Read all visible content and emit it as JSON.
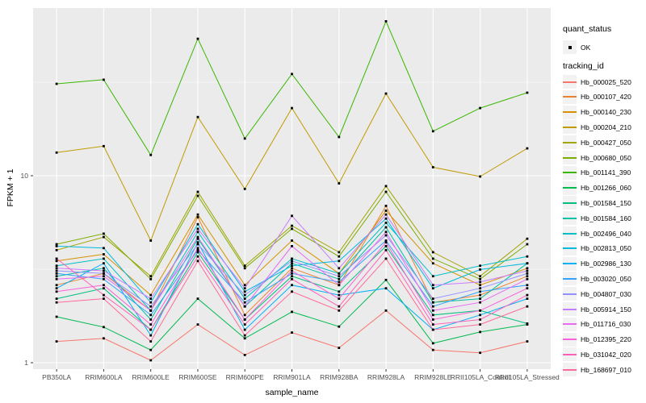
{
  "figure": {
    "background": "#FFFFFF",
    "panel_background": "#EBEBEB",
    "gridline_color": "#FFFFFF",
    "tick_label_color": "#4D4D4D",
    "tick_mark_color": "#333333",
    "point_color": "#000000"
  },
  "legend": {
    "quant_status_title": "quant_status",
    "quant_status_items": [
      {
        "label": "OK",
        "marker": "black-point"
      }
    ],
    "tracking_id_title": "tracking_id",
    "key_background": "#F2F2F2"
  },
  "chart_data": {
    "type": "line",
    "title": "",
    "xlabel": "sample_name",
    "ylabel": "FPKM + 1",
    "yscale": "log10",
    "yticks": [
      1,
      10
    ],
    "yminorticks": [
      3.162,
      31.62
    ],
    "ylim": [
      0.93,
      79
    ],
    "grid": true,
    "legend_position": "right",
    "point_shape": "small-black-square",
    "categories": [
      "PB350LA",
      "RRIM600LA",
      "RRIM600LE",
      "RRIM600SE",
      "RRIM600PE",
      "RRIM901LA",
      "RRIM928BA",
      "RRIM928LA",
      "RRIM928LE",
      "RRII105LA_Control",
      "RRII105LA_Stressed"
    ],
    "series": [
      {
        "name": "Hb_000025_520",
        "color": "#F8766D",
        "values": [
          1.3,
          1.35,
          1.03,
          1.6,
          1.1,
          1.45,
          1.2,
          1.9,
          1.17,
          1.13,
          1.3
        ]
      },
      {
        "name": "Hb_000107_420",
        "color": "#EA8331",
        "values": [
          2.6,
          3.0,
          1.9,
          6.0,
          1.8,
          3.2,
          2.6,
          6.9,
          2.1,
          2.3,
          2.9
        ]
      },
      {
        "name": "Hb_000140_230",
        "color": "#D89000",
        "values": [
          3.5,
          3.8,
          2.3,
          6.2,
          2.6,
          4.5,
          3.0,
          6.5,
          3.4,
          2.6,
          3.2
        ]
      },
      {
        "name": "Hb_000204_210",
        "color": "#C09B00",
        "values": [
          13.3,
          14.4,
          4.5,
          20.6,
          8.5,
          23.0,
          9.1,
          27.5,
          11.1,
          9.9,
          14.0
        ]
      },
      {
        "name": "Hb_000427_050",
        "color": "#A3A500",
        "values": [
          4.0,
          4.7,
          2.9,
          8.2,
          3.3,
          5.4,
          3.9,
          8.8,
          3.9,
          2.9,
          4.6
        ]
      },
      {
        "name": "Hb_000680_050",
        "color": "#7CAE00",
        "values": [
          4.3,
          4.9,
          2.8,
          7.8,
          3.2,
          5.2,
          3.7,
          8.2,
          3.6,
          2.8,
          4.3
        ]
      },
      {
        "name": "Hb_001141_390",
        "color": "#39B600",
        "values": [
          31.0,
          32.6,
          12.9,
          54.0,
          15.8,
          35.0,
          16.1,
          67.0,
          17.3,
          23.0,
          27.8
        ]
      },
      {
        "name": "Hb_001266_060",
        "color": "#00BB4E",
        "values": [
          1.76,
          1.55,
          1.17,
          2.2,
          1.35,
          1.87,
          1.56,
          2.77,
          1.27,
          1.46,
          1.6
        ]
      },
      {
        "name": "Hb_001584_150",
        "color": "#00BF7D",
        "values": [
          2.2,
          2.5,
          1.5,
          3.9,
          1.7,
          2.9,
          2.4,
          4.2,
          1.8,
          1.9,
          1.62
        ]
      },
      {
        "name": "Hb_001584_160",
        "color": "#00C1A3",
        "values": [
          2.9,
          3.2,
          1.7,
          4.6,
          2.0,
          3.4,
          2.8,
          5.3,
          2.1,
          2.2,
          3.4
        ]
      },
      {
        "name": "Hb_002496_040",
        "color": "#00BFC4",
        "values": [
          3.3,
          3.6,
          1.9,
          5.0,
          2.2,
          3.6,
          3.0,
          5.6,
          2.9,
          3.3,
          3.7
        ]
      },
      {
        "name": "Hb_002813_050",
        "color": "#00BAE0",
        "values": [
          4.2,
          4.1,
          2.1,
          5.5,
          2.4,
          3.3,
          3.5,
          5.9,
          2.5,
          3.15,
          3.4
        ]
      },
      {
        "name": "Hb_002986_130",
        "color": "#00B0F6",
        "values": [
          2.5,
          3.4,
          1.4,
          4.4,
          1.5,
          2.6,
          2.3,
          2.5,
          1.5,
          1.8,
          2.2
        ]
      },
      {
        "name": "Hb_003020_050",
        "color": "#35A2FF",
        "values": [
          3.0,
          2.8,
          1.8,
          4.0,
          2.1,
          3.0,
          2.7,
          4.5,
          2.0,
          2.4,
          2.6
        ]
      },
      {
        "name": "Hb_004807_030",
        "color": "#9590FF",
        "values": [
          3.1,
          3.0,
          2.0,
          4.3,
          2.3,
          3.5,
          2.9,
          4.8,
          2.2,
          2.5,
          3.0
        ]
      },
      {
        "name": "Hb_005914_150",
        "color": "#C77CFF",
        "values": [
          3.2,
          3.1,
          2.2,
          5.2,
          2.5,
          6.1,
          3.2,
          6.2,
          2.6,
          2.7,
          3.1
        ]
      },
      {
        "name": "Hb_011716_030",
        "color": "#E76BF3",
        "values": [
          2.8,
          2.9,
          1.9,
          4.7,
          2.0,
          4.2,
          2.6,
          5.0,
          1.9,
          2.1,
          2.8
        ]
      },
      {
        "name": "Hb_012395_220",
        "color": "#FA62DB",
        "values": [
          2.4,
          2.6,
          1.6,
          4.1,
          1.7,
          3.1,
          2.2,
          4.4,
          1.7,
          1.9,
          2.5
        ]
      },
      {
        "name": "Hb_031042_020",
        "color": "#FF62BC",
        "values": [
          3.6,
          2.3,
          1.5,
          3.7,
          1.6,
          2.8,
          2.0,
          4.0,
          1.6,
          1.7,
          2.3
        ]
      },
      {
        "name": "Hb_168697_010",
        "color": "#FF6A98",
        "values": [
          2.1,
          2.2,
          1.3,
          3.5,
          1.4,
          2.4,
          1.9,
          3.6,
          1.5,
          1.6,
          2.0
        ]
      }
    ]
  }
}
